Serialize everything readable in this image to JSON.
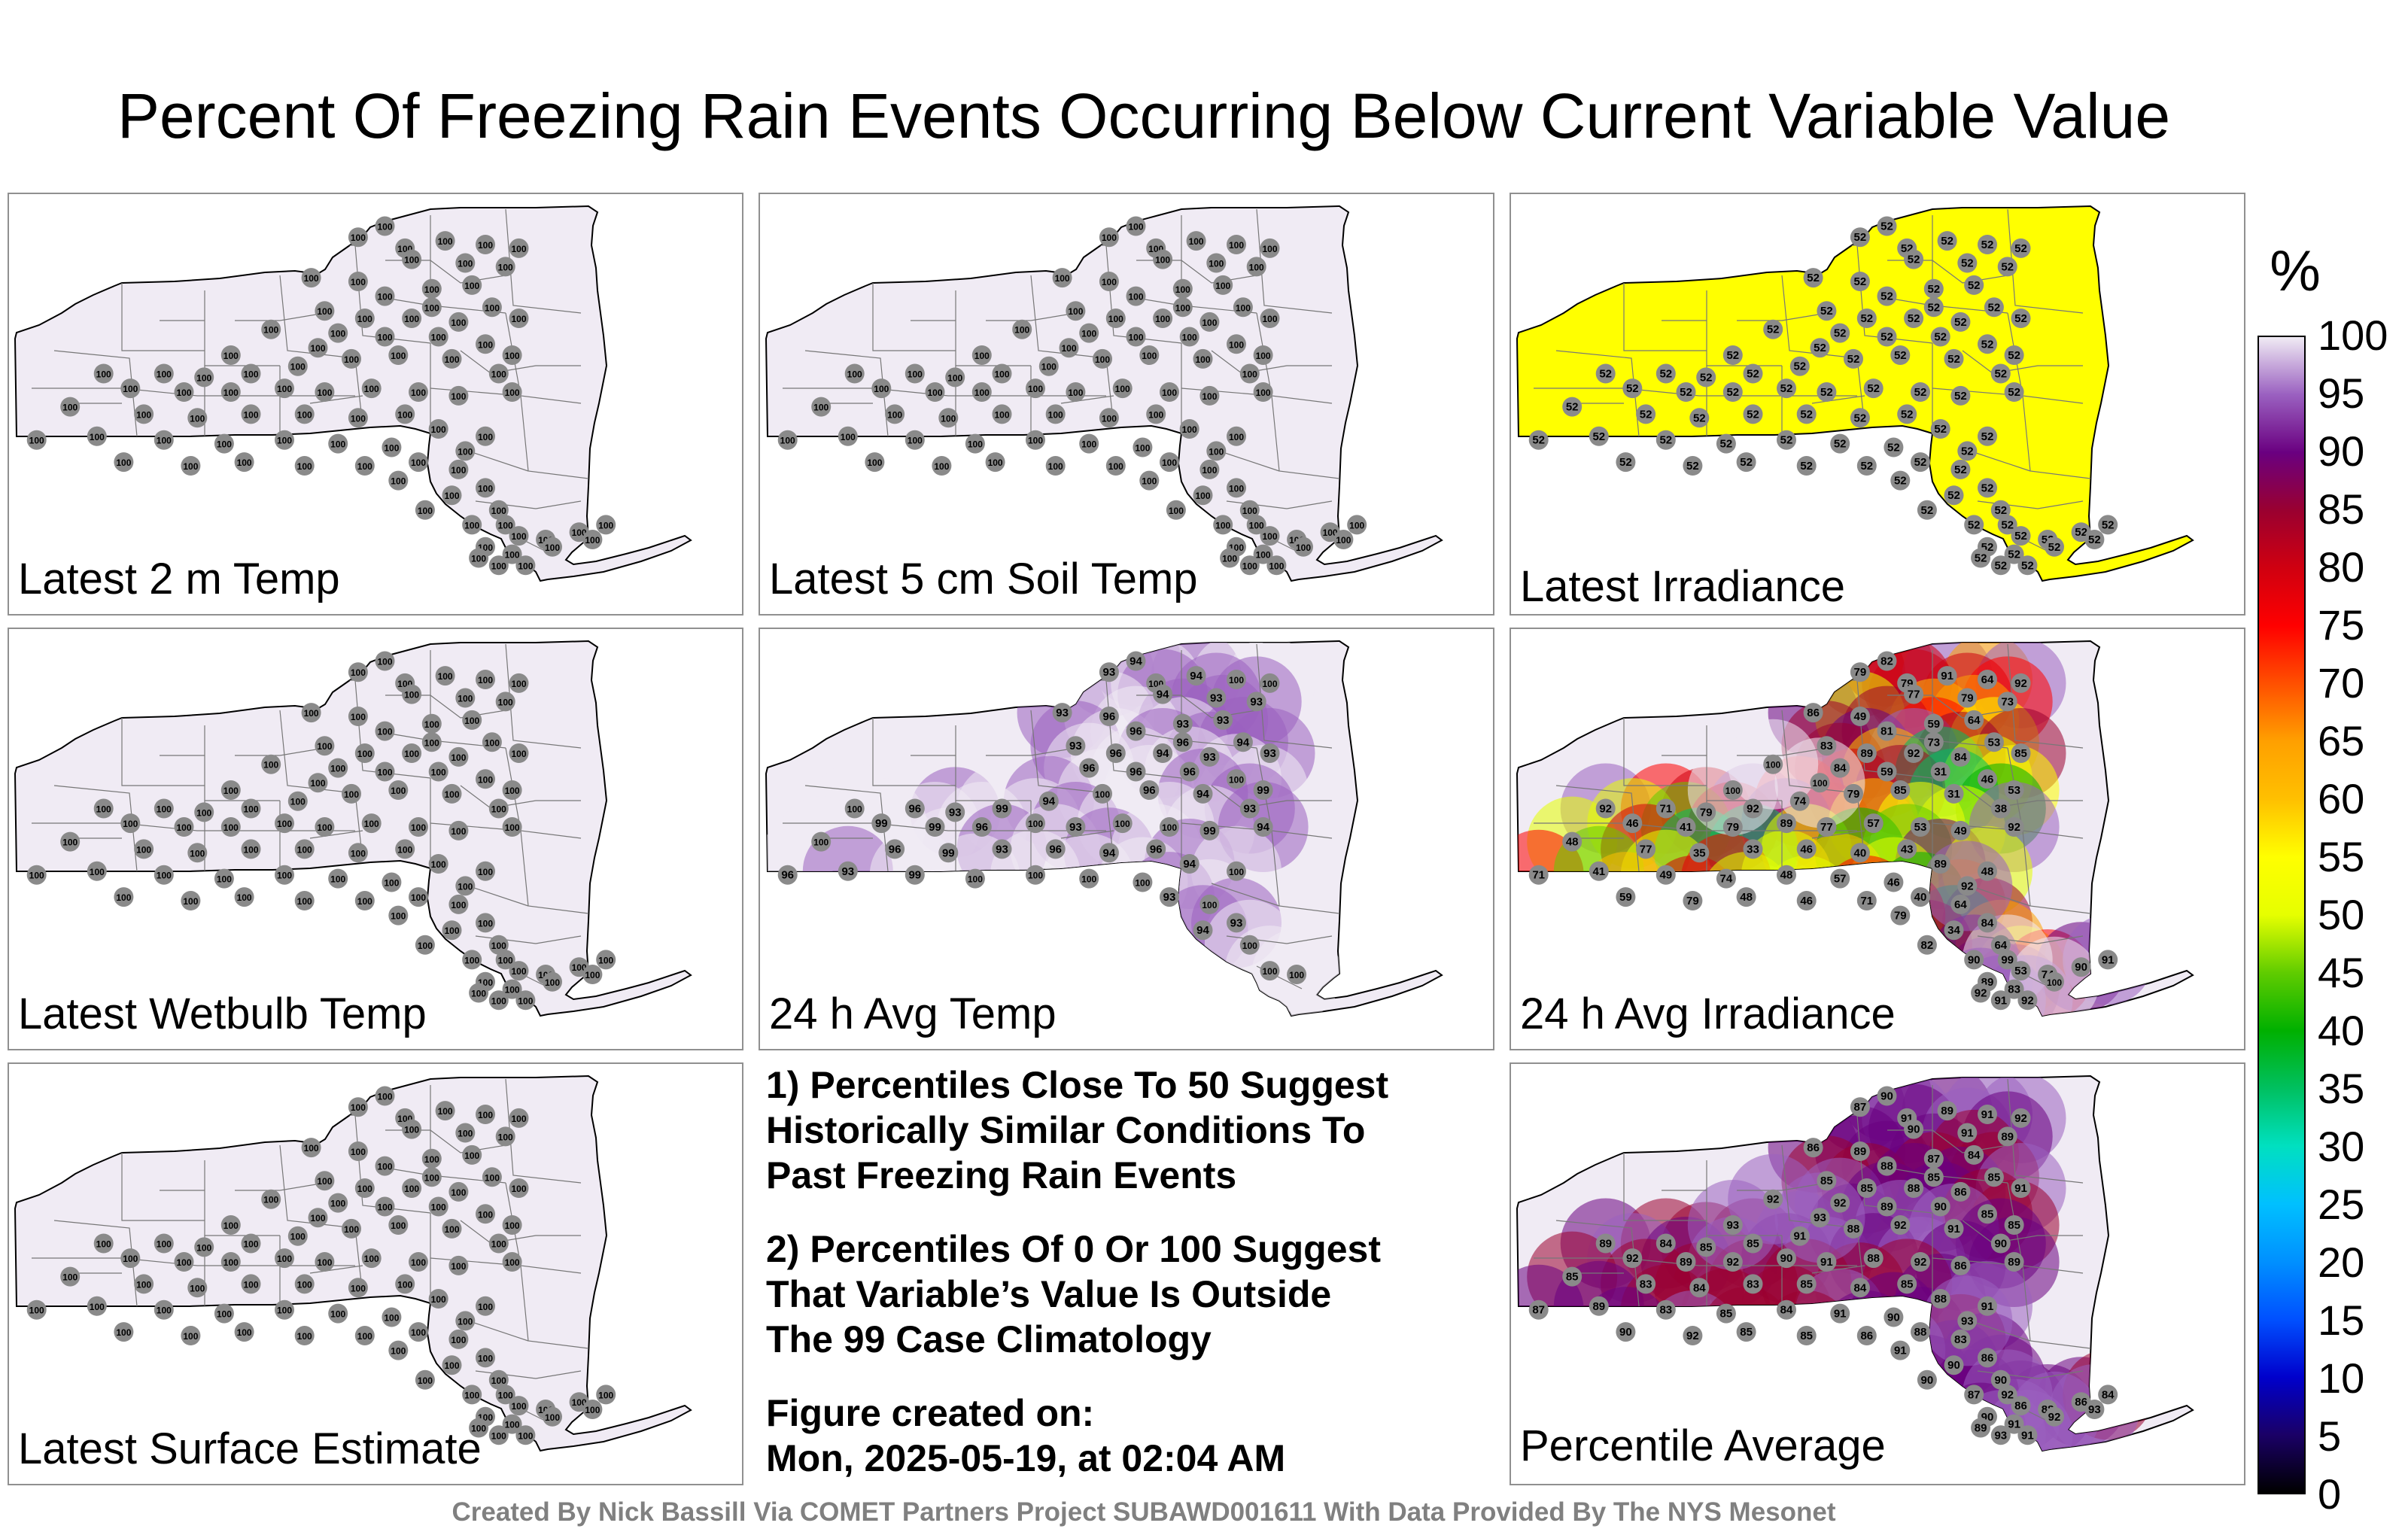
{
  "title": "Percent Of Freezing Rain Events Occurring Below Current Variable Value",
  "panels": [
    {
      "id": "p1",
      "label": "Latest 2 m Temp",
      "mode": "uniform",
      "value": 100,
      "fill": "#f0ebf4"
    },
    {
      "id": "p2",
      "label": "Latest 5 cm Soil Temp",
      "mode": "uniform",
      "value": 100,
      "fill": "#f0ebf4"
    },
    {
      "id": "p3",
      "label": "Latest Irradiance",
      "mode": "uniform",
      "value": 52,
      "fill": "#ffff00"
    },
    {
      "id": "p4",
      "label": "Latest Wetbulb Temp",
      "mode": "uniform",
      "value": 100,
      "fill": "#f0ebf4"
    },
    {
      "id": "p5",
      "label": "24 h Avg Temp",
      "mode": "field",
      "values": [
        94,
        93,
        94,
        100,
        100,
        100,
        94,
        93,
        93,
        93,
        96,
        93,
        93,
        96,
        96,
        94,
        93,
        96,
        94,
        93,
        93,
        96,
        96,
        96,
        100,
        99,
        100,
        96,
        93,
        99,
        94,
        100,
        96,
        94,
        93,
        99,
        99,
        96,
        100,
        93,
        100,
        100,
        99,
        94,
        100,
        96,
        99,
        93,
        96,
        94,
        96,
        94,
        100,
        96,
        93,
        99,
        100,
        100,
        100,
        100,
        93,
        100,
        93,
        94,
        100,
        100,
        100
      ]
    },
    {
      "id": "p6",
      "label": "24 h Avg Irradiance",
      "mode": "field",
      "values": [
        82,
        79,
        91,
        64,
        92,
        79,
        77,
        79,
        73,
        86,
        49,
        59,
        64,
        81,
        73,
        53,
        83,
        89,
        92,
        84,
        85,
        84,
        59,
        31,
        46,
        53,
        92,
        71,
        79,
        92,
        74,
        79,
        85,
        31,
        38,
        46,
        41,
        79,
        89,
        77,
        57,
        53,
        49,
        92,
        48,
        77,
        35,
        33,
        46,
        40,
        43,
        89,
        48,
        71,
        41,
        49,
        74,
        48,
        57,
        46,
        40,
        64,
        84,
        34,
        64,
        53,
        74,
        90,
        91,
        89,
        83,
        59,
        79,
        48,
        46,
        71,
        79,
        82,
        90,
        99,
        92,
        91,
        92,
        100,
        92,
        100,
        100,
        100
      ]
    },
    {
      "id": "p7",
      "label": "Latest Surface Estimate",
      "mode": "uniform",
      "value": 100,
      "fill": "#f0ebf4"
    },
    {
      "id": "p9",
      "label": "Percentile Average",
      "mode": "field",
      "values": [
        90,
        87,
        89,
        91,
        92,
        91,
        90,
        91,
        89,
        86,
        89,
        87,
        84,
        88,
        85,
        85,
        85,
        85,
        88,
        86,
        91,
        92,
        89,
        90,
        85,
        85,
        89,
        84,
        85,
        85,
        91,
        88,
        92,
        91,
        90,
        92,
        89,
        92,
        90,
        91,
        88,
        92,
        86,
        89,
        85,
        83,
        84,
        83,
        85,
        84,
        85,
        88,
        91,
        87,
        89,
        83,
        85,
        84,
        91,
        90,
        88,
        83,
        86,
        90,
        90,
        86,
        88,
        86,
        84,
        90,
        91,
        90,
        92,
        85,
        85,
        86,
        91,
        90,
        87,
        92,
        89,
        93,
        91,
        92,
        93,
        93,
        92,
        93,
        93
      ]
    }
  ],
  "notes": {
    "line1": "1) Percentiles Close To 50 Suggest",
    "line2": "Historically Similar Conditions To",
    "line3": "Past Freezing Rain Events",
    "line4": "2) Percentiles Of 0 Or 100 Suggest",
    "line5": "That Variable’s Value Is Outside",
    "line6": "The 99 Case Climatology",
    "created_label": "Figure created on:",
    "created_value": "Mon, 2025-05-19, at 02:04 AM"
  },
  "colorbar": {
    "unit": "%",
    "ticks": [
      "100",
      "95",
      "90",
      "85",
      "80",
      "75",
      "70",
      "65",
      "60",
      "55",
      "50",
      "45",
      "40",
      "35",
      "30",
      "25",
      "20",
      "15",
      "10",
      "5",
      "0"
    ]
  },
  "credit": "Created By Nick Bassill Via COMET Partners Project SUBAWD001611 With Data Provided By The NYS Mesonet"
}
